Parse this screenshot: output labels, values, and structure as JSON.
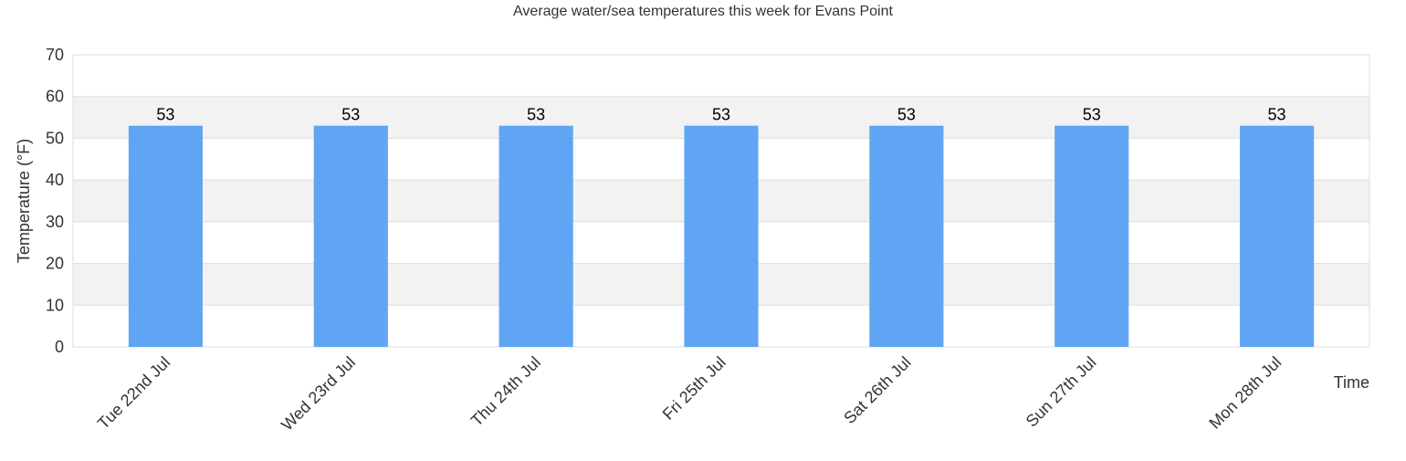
{
  "chart_data": {
    "type": "bar",
    "title": "Average water/sea temperatures this week for Evans Point",
    "xlabel": "Time",
    "ylabel": "Temperature (°F)",
    "ylim": [
      0,
      70
    ],
    "yticks": [
      0,
      10,
      20,
      30,
      40,
      50,
      60,
      70
    ],
    "categories": [
      "Tue 22nd Jul",
      "Wed 23rd Jul",
      "Thu 24th Jul",
      "Fri 25th Jul",
      "Sat 26th Jul",
      "Sun 27th Jul",
      "Mon 28th Jul"
    ],
    "values": [
      53,
      53,
      53,
      53,
      53,
      53,
      53
    ],
    "data_labels": [
      "53",
      "53",
      "53",
      "53",
      "53",
      "53",
      "53"
    ],
    "grid": true,
    "legend": "none",
    "colors": {
      "bar": "#60a5f3",
      "band": "#f2f2f2",
      "grid": "#dddddd",
      "text": "#333333"
    }
  }
}
